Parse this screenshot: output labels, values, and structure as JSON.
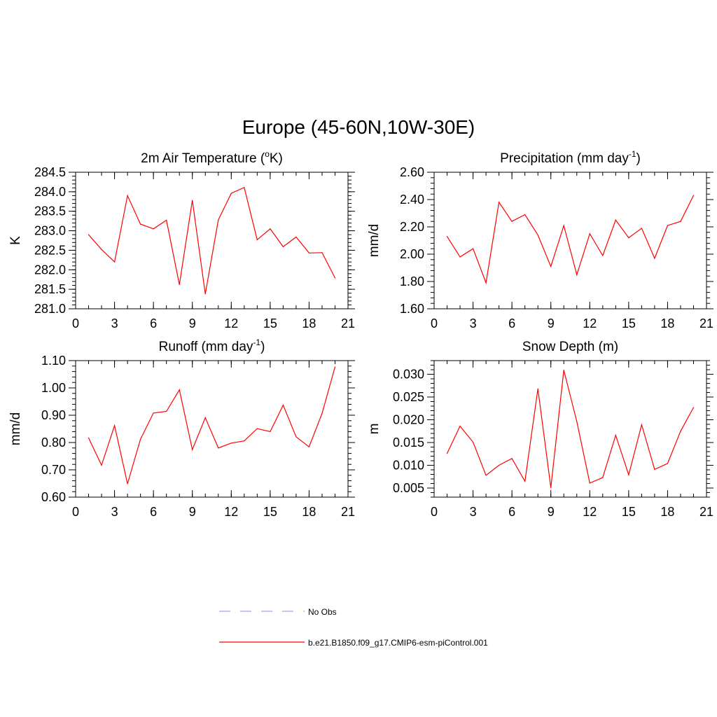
{
  "figure_title": "Europe (45-60N,10W-30E)",
  "chart_data": [
    {
      "type": "line",
      "title": "2m Air Temperature (",
      "title_sup": "o",
      "title_suffix": "K)",
      "xlabel": "",
      "ylabel": "K",
      "xlim": [
        0,
        21
      ],
      "ylim": [
        281.0,
        284.5
      ],
      "xticks": [
        "0",
        "3",
        "6",
        "9",
        "12",
        "15",
        "18",
        "21"
      ],
      "yticks": [
        "281.0",
        "281.5",
        "282.0",
        "282.5",
        "283.0",
        "283.5",
        "284.0",
        "284.5"
      ],
      "series": [
        {
          "color": "#ff0000",
          "x": [
            1,
            2,
            3,
            4,
            5,
            6,
            7,
            8,
            9,
            10,
            11,
            12,
            13,
            14,
            15,
            16,
            17,
            18,
            19,
            20
          ],
          "y": [
            282.9,
            282.52,
            282.2,
            283.9,
            283.17,
            283.05,
            283.27,
            281.62,
            283.78,
            281.38,
            283.28,
            283.96,
            284.11,
            282.77,
            283.05,
            282.59,
            282.84,
            282.43,
            282.44,
            281.79
          ]
        }
      ]
    },
    {
      "type": "line",
      "title": "Precipitation (mm day",
      "title_sup": "-1",
      "title_suffix": ")",
      "xlabel": "",
      "ylabel": "mm/d",
      "xlim": [
        0,
        21
      ],
      "ylim": [
        1.6,
        2.6
      ],
      "xticks": [
        "0",
        "3",
        "6",
        "9",
        "12",
        "15",
        "18",
        "21"
      ],
      "yticks": [
        "1.60",
        "1.80",
        "2.00",
        "2.20",
        "2.40",
        "2.60"
      ],
      "series": [
        {
          "color": "#ff0000",
          "x": [
            1,
            2,
            3,
            4,
            5,
            6,
            7,
            8,
            9,
            10,
            11,
            12,
            13,
            14,
            15,
            16,
            17,
            18,
            19,
            20
          ],
          "y": [
            2.13,
            1.98,
            2.04,
            1.79,
            2.38,
            2.24,
            2.29,
            2.14,
            1.91,
            2.21,
            1.85,
            2.15,
            1.99,
            2.25,
            2.12,
            2.19,
            1.97,
            2.21,
            2.24,
            2.43
          ]
        }
      ]
    },
    {
      "type": "line",
      "title": "Runoff (mm day",
      "title_sup": "-1",
      "title_suffix": ")",
      "xlabel": "",
      "ylabel": "mm/d",
      "xlim": [
        0,
        21
      ],
      "ylim": [
        0.6,
        1.1
      ],
      "xticks": [
        "0",
        "3",
        "6",
        "9",
        "12",
        "15",
        "18",
        "21"
      ],
      "yticks": [
        "0.60",
        "0.70",
        "0.80",
        "0.90",
        "1.00",
        "1.10"
      ],
      "series": [
        {
          "color": "#ff0000",
          "x": [
            1,
            2,
            3,
            4,
            5,
            6,
            7,
            8,
            9,
            10,
            11,
            12,
            13,
            14,
            15,
            16,
            17,
            18,
            19,
            20
          ],
          "y": [
            0.817,
            0.717,
            0.862,
            0.649,
            0.812,
            0.908,
            0.914,
            0.993,
            0.774,
            0.891,
            0.78,
            0.798,
            0.806,
            0.851,
            0.84,
            0.937,
            0.821,
            0.784,
            0.907,
            1.077
          ]
        }
      ]
    },
    {
      "type": "line",
      "title": "Snow Depth (m)",
      "title_sup": "",
      "title_suffix": "",
      "xlabel": "",
      "ylabel": "m",
      "xlim": [
        0,
        21
      ],
      "ylim": [
        0.003,
        0.033
      ],
      "xticks": [
        "0",
        "3",
        "6",
        "9",
        "12",
        "15",
        "18",
        "21"
      ],
      "yticks": [
        "0.005",
        "0.010",
        "0.015",
        "0.020",
        "0.025",
        "0.030"
      ],
      "series": [
        {
          "color": "#ff0000",
          "x": [
            1,
            2,
            3,
            4,
            5,
            6,
            7,
            8,
            9,
            10,
            11,
            12,
            13,
            14,
            15,
            16,
            17,
            18,
            19,
            20
          ],
          "y": [
            0.0126,
            0.0186,
            0.0151,
            0.0078,
            0.01,
            0.0115,
            0.0065,
            0.0268,
            0.0051,
            0.0309,
            0.0196,
            0.0061,
            0.0073,
            0.0166,
            0.0079,
            0.0189,
            0.0091,
            0.0104,
            0.0175,
            0.0227
          ]
        }
      ]
    }
  ],
  "legend": [
    {
      "label": "No Obs",
      "color": "#a0a0ff",
      "style": "dashed"
    },
    {
      "label": "b.e21.B1850.f09_g17.CMIP6-esm-piControl.001",
      "color": "#ff0000",
      "style": "solid"
    }
  ]
}
